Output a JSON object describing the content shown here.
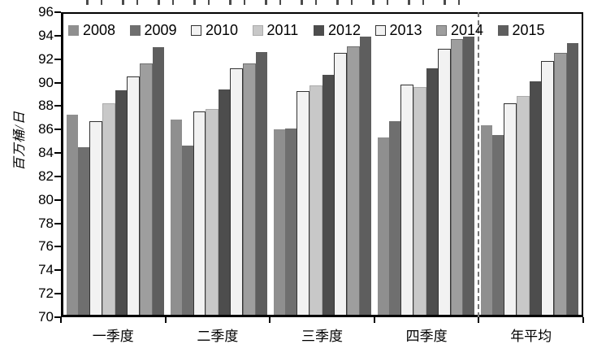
{
  "chart_data": {
    "type": "bar",
    "title": "",
    "ylabel": "百万桶/日",
    "xlabel": "",
    "categories": [
      "一季度",
      "二季度",
      "三季度",
      "四季度",
      "年平均"
    ],
    "series": [
      {
        "name": "2008",
        "color": "#8f8f8f",
        "border": "",
        "values": [
          87.3,
          86.9,
          86.0,
          85.3,
          86.4
        ]
      },
      {
        "name": "2009",
        "color": "#6f6f6f",
        "border": "",
        "values": [
          84.5,
          84.6,
          86.1,
          86.7,
          85.5
        ]
      },
      {
        "name": "2010",
        "color": "#f2f2f2",
        "border": "#333333",
        "values": [
          86.7,
          87.6,
          89.3,
          89.9,
          88.3
        ]
      },
      {
        "name": "2011",
        "color": "#c8c8c8",
        "border": "#ababab",
        "values": [
          88.3,
          87.8,
          89.8,
          89.7,
          88.9
        ]
      },
      {
        "name": "2012",
        "color": "#4d4d4d",
        "border": "",
        "values": [
          89.4,
          89.5,
          90.7,
          91.3,
          90.2
        ]
      },
      {
        "name": "2013",
        "color": "#f2f2f2",
        "border": "#333333",
        "values": [
          90.6,
          91.3,
          92.6,
          93.0,
          91.9
        ]
      },
      {
        "name": "2014",
        "color": "#9e9e9e",
        "border": "#6f6f6f",
        "values": [
          91.7,
          91.7,
          93.2,
          93.8,
          92.6
        ]
      },
      {
        "name": "2015",
        "color": "#5e5e5e",
        "border": "",
        "values": [
          93.1,
          92.7,
          94.0,
          94.0,
          93.5
        ]
      }
    ],
    "ylim": [
      70,
      96
    ],
    "yticks": [
      96,
      94,
      92,
      90,
      88,
      86,
      84,
      82,
      80,
      78,
      76,
      74,
      72,
      70
    ],
    "grid": false,
    "legend_position": "top-inside",
    "separator_after_category_index": 3,
    "separator_color": "#757575"
  }
}
